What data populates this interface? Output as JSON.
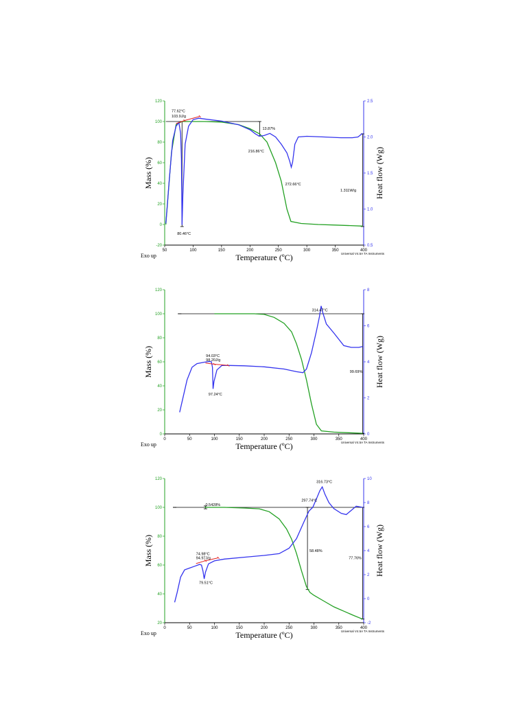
{
  "chart_data": [
    {
      "type": "line",
      "xlabel": "Temperature (ºC)",
      "ylabel": "Mass (%)",
      "y2label": "Heat flow (Wg)",
      "exo_label": "Exo up",
      "credit": "Universal V4.5A TA Instruments",
      "xlim": [
        50,
        400
      ],
      "xticks": [
        "50",
        "100",
        "150",
        "200",
        "250",
        "300",
        "350",
        "400"
      ],
      "ylim": [
        -20,
        120
      ],
      "yticks": [
        "-20",
        "0",
        "20",
        "40",
        "60",
        "80",
        "100",
        "120"
      ],
      "y2lim": [
        0.5,
        2.5
      ],
      "y2ticks": [
        "0.5",
        "1.0",
        "1.5",
        "2.0",
        "2.5"
      ],
      "series": [
        {
          "axis": "y",
          "color": "#22a022",
          "points": [
            [
              52,
              0
            ],
            [
              62,
              70
            ],
            [
              70,
              97
            ],
            [
              80,
              100
            ],
            [
              100,
              100
            ],
            [
              120,
              100
            ],
            [
              150,
              99.5
            ],
            [
              180,
              97
            ],
            [
              200,
              93
            ],
            [
              217,
              88
            ],
            [
              230,
              80
            ],
            [
              245,
              60
            ],
            [
              255,
              42
            ],
            [
              265,
              15
            ],
            [
              272,
              3
            ],
            [
              290,
              1
            ],
            [
              320,
              0
            ],
            [
              350,
              -0.5
            ],
            [
              398,
              -1.5
            ]
          ]
        },
        {
          "axis": "y2",
          "color": "#3333ee",
          "points": [
            [
              52,
              0.8
            ],
            [
              58,
              1.4
            ],
            [
              64,
              1.95
            ],
            [
              70,
              2.15
            ],
            [
              75,
              2.2
            ],
            [
              78,
              2.05
            ],
            [
              79.5,
              1.7
            ],
            [
              80.5,
              0.78
            ],
            [
              82,
              1.2
            ],
            [
              86,
              1.9
            ],
            [
              92,
              2.15
            ],
            [
              100,
              2.24
            ],
            [
              110,
              2.26
            ],
            [
              120,
              2.25
            ],
            [
              150,
              2.22
            ],
            [
              180,
              2.17
            ],
            [
              200,
              2.1
            ],
            [
              210,
              2.04
            ],
            [
              216.9,
              2.01
            ],
            [
              225,
              2.02
            ],
            [
              235,
              2.05
            ],
            [
              245,
              2.0
            ],
            [
              255,
              1.9
            ],
            [
              265,
              1.78
            ],
            [
              270,
              1.66
            ],
            [
              272.7,
              1.58
            ],
            [
              275,
              1.65
            ],
            [
              279,
              1.9
            ],
            [
              285,
              2.0
            ],
            [
              300,
              2.01
            ],
            [
              330,
              2.0
            ],
            [
              360,
              1.99
            ],
            [
              380,
              1.99
            ],
            [
              390,
              2.0
            ],
            [
              398,
              2.05
            ]
          ]
        }
      ],
      "annotations": [
        {
          "text": "77.62°C",
          "x": 62,
          "y": 109
        },
        {
          "text": "103.9J/g",
          "x": 62,
          "y": 104
        },
        {
          "text": "13.87%",
          "x": 222,
          "y": 92
        },
        {
          "text": "216.86°C",
          "x": 197,
          "y": 70
        },
        {
          "text": "272.66°C",
          "x": 262,
          "y": 38
        },
        {
          "text": "1.311W/g",
          "x": 359,
          "y": 32
        },
        {
          "text": "80.46°C",
          "x": 72,
          "y": -10
        }
      ],
      "hline": {
        "y": 100,
        "x1": 52,
        "x2": 217
      },
      "vmarkers": [
        {
          "x": 80.5,
          "y1": 100,
          "y2": -2
        },
        {
          "x": 217,
          "y1": 100,
          "y2": 86
        },
        {
          "x": 398,
          "y1": 88,
          "y2": -2
        }
      ],
      "tangent_segments": [
        {
          "x1": 70,
          "y1": 98,
          "x2": 85,
          "y2": 101
        },
        {
          "x1": 85,
          "y1": 101,
          "x2": 112,
          "y2": 105
        }
      ]
    },
    {
      "type": "line",
      "xlabel": "Temperature (ºC)",
      "ylabel": "Mass (%)",
      "y2label": "Heat flow (Wg)",
      "exo_label": "Exo up",
      "credit": "Universal V4.5A TA Instruments",
      "xlim": [
        0,
        400
      ],
      "xticks": [
        "0",
        "50",
        "100",
        "150",
        "200",
        "250",
        "300",
        "350",
        "400"
      ],
      "ylim": [
        0,
        120
      ],
      "yticks": [
        "0",
        "20",
        "40",
        "60",
        "80",
        "100",
        "120"
      ],
      "y2lim": [
        0,
        8
      ],
      "y2ticks": [
        "0",
        "2",
        "4",
        "6",
        "8"
      ],
      "series": [
        {
          "axis": "y",
          "color": "#22a022",
          "points": [
            [
              100,
              100
            ],
            [
              150,
              100
            ],
            [
              180,
              100
            ],
            [
              200,
              99.5
            ],
            [
              220,
              97
            ],
            [
              240,
              92
            ],
            [
              255,
              85
            ],
            [
              265,
              75
            ],
            [
              275,
              62
            ],
            [
              285,
              45
            ],
            [
              295,
              25
            ],
            [
              305,
              8
            ],
            [
              315,
              2.5
            ],
            [
              340,
              1.5
            ],
            [
              370,
              1
            ],
            [
              398,
              0.5
            ]
          ]
        },
        {
          "axis": "y2",
          "color": "#3333ee",
          "points": [
            [
              30,
              1.2
            ],
            [
              35,
              1.8
            ],
            [
              45,
              3.0
            ],
            [
              55,
              3.7
            ],
            [
              65,
              3.9
            ],
            [
              80,
              3.98
            ],
            [
              90,
              4.02
            ],
            [
              94,
              4.0
            ],
            [
              96,
              3.7
            ],
            [
              97.2,
              2.5
            ],
            [
              99,
              2.9
            ],
            [
              105,
              3.55
            ],
            [
              115,
              3.8
            ],
            [
              130,
              3.8
            ],
            [
              160,
              3.78
            ],
            [
              200,
              3.72
            ],
            [
              240,
              3.6
            ],
            [
              265,
              3.45
            ],
            [
              278,
              3.4
            ],
            [
              285,
              3.6
            ],
            [
              295,
              4.5
            ],
            [
              305,
              5.7
            ],
            [
              311,
              6.5
            ],
            [
              314.5,
              7.1
            ],
            [
              318,
              6.7
            ],
            [
              325,
              6.1
            ],
            [
              340,
              5.6
            ],
            [
              360,
              4.9
            ],
            [
              375,
              4.8
            ],
            [
              390,
              4.8
            ],
            [
              398,
              4.85
            ]
          ]
        }
      ],
      "annotations": [
        {
          "text": "314.47°C",
          "x": 296,
          "y": 102
        },
        {
          "text": "94.03°C",
          "x": 83,
          "y": 64
        },
        {
          "text": "98.20J/g",
          "x": 83,
          "y": 60.5
        },
        {
          "text": "97.24°C",
          "x": 88,
          "y": 32
        },
        {
          "text": "99.69%",
          "x": 372,
          "y": 51
        }
      ],
      "hline": {
        "y": 100,
        "x1": 30,
        "x2": 398
      },
      "vmarkers": [
        {
          "x": 30,
          "y1": 100,
          "y2": 100
        },
        {
          "x": 398,
          "y1": 100,
          "y2": 0.5
        }
      ],
      "tangent_segments": [
        {
          "x1": 82,
          "y1": 59,
          "x2": 100,
          "y2": 58
        },
        {
          "x1": 100,
          "y1": 58,
          "x2": 128,
          "y2": 57
        }
      ]
    },
    {
      "type": "line",
      "xlabel": "Temperature (ºC)",
      "ylabel": "Mass (%)",
      "y2label": "Heat flow (Wg)",
      "exo_label": "Exo up",
      "credit": "Universal V4.5A TA Instruments",
      "xlim": [
        0,
        400
      ],
      "xticks": [
        "0",
        "50",
        "100",
        "150",
        "200",
        "250",
        "300",
        "350",
        "400"
      ],
      "ylim": [
        20,
        120
      ],
      "yticks": [
        "20",
        "40",
        "60",
        "80",
        "100",
        "120"
      ],
      "y2lim": [
        -2,
        10
      ],
      "y2ticks": [
        "-2",
        "0",
        "2",
        "4",
        "6",
        "8",
        "10"
      ],
      "series": [
        {
          "axis": "y",
          "color": "#22a022",
          "points": [
            [
              80,
              100
            ],
            [
              120,
              100
            ],
            [
              160,
              99.5
            ],
            [
              190,
              99
            ],
            [
              210,
              97
            ],
            [
              230,
              92
            ],
            [
              245,
              85
            ],
            [
              255,
              78
            ],
            [
              265,
              68
            ],
            [
              275,
              56
            ],
            [
              285,
              45
            ],
            [
              292,
              41
            ],
            [
              300,
              39
            ],
            [
              320,
              35
            ],
            [
              340,
              31
            ],
            [
              360,
              28
            ],
            [
              380,
              25
            ],
            [
              398,
              22.5
            ]
          ]
        },
        {
          "axis": "y2",
          "color": "#3333ee",
          "points": [
            [
              20,
              -0.3
            ],
            [
              25,
              0.5
            ],
            [
              32,
              1.8
            ],
            [
              40,
              2.4
            ],
            [
              50,
              2.55
            ],
            [
              60,
              2.7
            ],
            [
              70,
              2.85
            ],
            [
              74,
              2.8
            ],
            [
              77,
              2.3
            ],
            [
              79.5,
              1.65
            ],
            [
              82,
              2.2
            ],
            [
              88,
              2.9
            ],
            [
              100,
              3.15
            ],
            [
              120,
              3.3
            ],
            [
              160,
              3.45
            ],
            [
              200,
              3.6
            ],
            [
              230,
              3.75
            ],
            [
              250,
              4.2
            ],
            [
              265,
              5.0
            ],
            [
              280,
              6.4
            ],
            [
              290,
              7.3
            ],
            [
              297.7,
              7.6
            ],
            [
              305,
              8.3
            ],
            [
              312,
              9.0
            ],
            [
              316.7,
              9.3
            ],
            [
              322,
              8.7
            ],
            [
              330,
              8.0
            ],
            [
              340,
              7.5
            ],
            [
              355,
              7.1
            ],
            [
              365,
              7.0
            ],
            [
              375,
              7.35
            ],
            [
              385,
              7.7
            ],
            [
              398,
              7.6
            ]
          ]
        }
      ],
      "annotations": [
        {
          "text": "0.5428%",
          "x": 82,
          "y": 101
        },
        {
          "text": "297.74°C",
          "x": 275,
          "y": 104
        },
        {
          "text": "316.73°C",
          "x": 305,
          "y": 117
        },
        {
          "text": "74.98°C",
          "x": 63,
          "y": 67
        },
        {
          "text": "94.97J/g",
          "x": 63,
          "y": 64
        },
        {
          "text": "79.51°C",
          "x": 69,
          "y": 47
        },
        {
          "text": "58.48%",
          "x": 291,
          "y": 69
        },
        {
          "text": "77.76%",
          "x": 370,
          "y": 64
        }
      ],
      "hline": {
        "y": 100,
        "x1": 20,
        "x2": 398
      },
      "vmarkers": [
        {
          "x": 20,
          "y1": 100,
          "y2": 100
        },
        {
          "x": 82,
          "y1": 101,
          "y2": 99
        },
        {
          "x": 287,
          "y1": 100,
          "y2": 43
        },
        {
          "x": 398,
          "y1": 100,
          "y2": 22.5
        }
      ],
      "tangent_segments": [
        {
          "x1": 63,
          "y1": 61,
          "x2": 82,
          "y2": 63
        },
        {
          "x1": 82,
          "y1": 63,
          "x2": 108,
          "y2": 65
        }
      ]
    }
  ]
}
